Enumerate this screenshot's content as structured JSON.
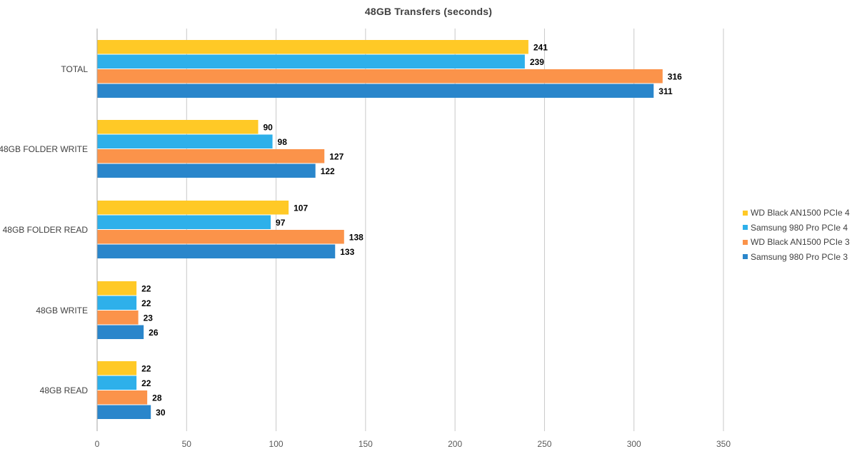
{
  "chart_data": {
    "type": "bar",
    "orientation": "horizontal",
    "title": "48GB  Transfers (seconds)",
    "categories": [
      "TOTAL",
      "48GB FOLDER WRITE",
      "48GB FOLDER READ",
      "48GB WRITE",
      "48GB READ"
    ],
    "series": [
      {
        "name": "WD Black AN1500 PCIe 4",
        "color": "#FFC926",
        "values": [
          241,
          90,
          107,
          22,
          22
        ]
      },
      {
        "name": "Samsung 980 Pro PCIe 4",
        "color": "#2EB0EA",
        "values": [
          239,
          98,
          97,
          22,
          22
        ]
      },
      {
        "name": "WD Black AN1500 PCIe 3",
        "color": "#FB934A",
        "values": [
          316,
          127,
          138,
          23,
          28
        ]
      },
      {
        "name": "Samsung 980 Pro PCIe 3",
        "color": "#2A86CB",
        "values": [
          311,
          122,
          133,
          26,
          30
        ]
      }
    ],
    "xlim": [
      0,
      350
    ],
    "xticks": [
      0,
      50,
      100,
      150,
      200,
      250,
      300,
      350
    ],
    "grid": true,
    "legend_position": "right",
    "data_labels": true
  }
}
